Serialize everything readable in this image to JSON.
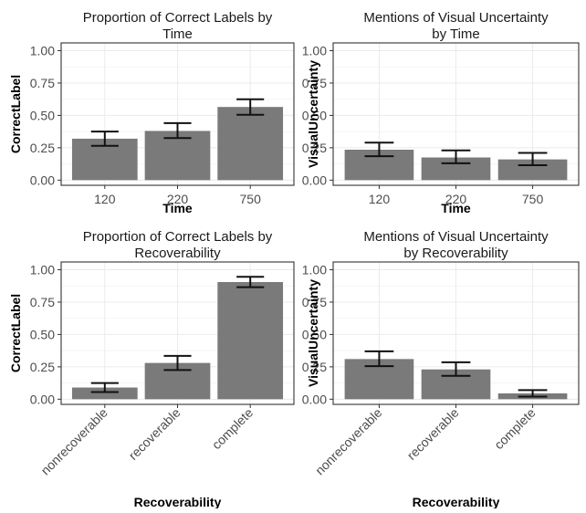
{
  "chart_data": [
    {
      "type": "bar",
      "title_lines": [
        "Proportion of Correct Labels by",
        "Time"
      ],
      "xlabel": "Time",
      "ylabel": "CorrectLabel",
      "categories": [
        "120",
        "220",
        "750"
      ],
      "values": [
        0.32,
        0.38,
        0.565
      ],
      "error_low": [
        0.265,
        0.325,
        0.505
      ],
      "error_high": [
        0.375,
        0.44,
        0.625
      ],
      "ylim": [
        -0.04,
        1.06
      ],
      "yticks": [
        "0.00",
        "0.25",
        "0.50",
        "0.75",
        "1.00"
      ],
      "xtick_angle": 0,
      "grid": true,
      "bar_color": "#7a7a7a"
    },
    {
      "type": "bar",
      "title_lines": [
        "Mentions of Visual Uncertainty",
        "by Time"
      ],
      "xlabel": "Time",
      "ylabel": "VisualUncertainty",
      "categories": [
        "120",
        "220",
        "750"
      ],
      "values": [
        0.235,
        0.175,
        0.16
      ],
      "error_low": [
        0.185,
        0.13,
        0.115
      ],
      "error_high": [
        0.29,
        0.23,
        0.21
      ],
      "ylim": [
        -0.04,
        1.06
      ],
      "yticks": [
        "0.00",
        "0.25",
        "0.50",
        "0.75",
        "1.00"
      ],
      "xtick_angle": 0,
      "grid": true,
      "bar_color": "#7a7a7a"
    },
    {
      "type": "bar",
      "title_lines": [
        "Proportion of Correct Labels by",
        "Recoverability"
      ],
      "xlabel": "Recoverability",
      "ylabel": "CorrectLabel",
      "categories": [
        "nonrecoverable",
        "recoverable",
        "complete"
      ],
      "values": [
        0.09,
        0.28,
        0.905
      ],
      "error_low": [
        0.055,
        0.225,
        0.865
      ],
      "error_high": [
        0.125,
        0.335,
        0.945
      ],
      "ylim": [
        -0.04,
        1.06
      ],
      "yticks": [
        "0.00",
        "0.25",
        "0.50",
        "0.75",
        "1.00"
      ],
      "xtick_angle": -45,
      "grid": true,
      "bar_color": "#7a7a7a"
    },
    {
      "type": "bar",
      "title_lines": [
        "Mentions of Visual Uncertainty",
        "by Recoverability"
      ],
      "xlabel": "Recoverability",
      "ylabel": "VisualUncertainty",
      "categories": [
        "nonrecoverable",
        "recoverable",
        "complete"
      ],
      "values": [
        0.31,
        0.23,
        0.045
      ],
      "error_low": [
        0.255,
        0.18,
        0.02
      ],
      "error_high": [
        0.37,
        0.285,
        0.07
      ],
      "ylim": [
        -0.04,
        1.06
      ],
      "yticks": [
        "0.00",
        "0.25",
        "0.50",
        "0.75",
        "1.00"
      ],
      "xtick_angle": -45,
      "grid": true,
      "bar_color": "#7a7a7a"
    }
  ]
}
